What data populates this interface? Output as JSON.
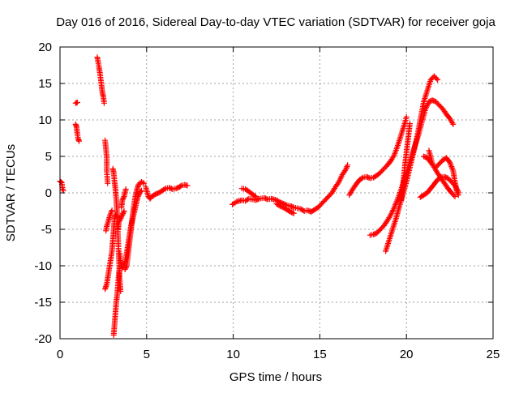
{
  "colors": {
    "series": "#ff0000",
    "grid": "#a0a0a0",
    "axis": "#000000",
    "background": "#ffffff"
  },
  "chart_data": {
    "type": "scatter",
    "marker": "plus",
    "title": "Day 016 of 2016, Sidereal Day-to-day VTEC variation (SDTVAR) for receiver goja",
    "xlabel": "GPS time / hours",
    "ylabel": "SDTVAR / TECUs",
    "xlim": [
      0,
      25
    ],
    "ylim": [
      -20,
      20
    ],
    "xticks": [
      0,
      5,
      10,
      15,
      20,
      25
    ],
    "yticks": [
      -20,
      -15,
      -10,
      -5,
      0,
      5,
      10,
      15,
      20
    ],
    "grid": true,
    "series": [
      {
        "name": "SDTVAR",
        "segments": [
          [
            [
              0.0,
              1.6
            ],
            [
              0.1,
              1.4
            ],
            [
              0.15,
              0.5
            ],
            [
              0.2,
              0.3
            ]
          ],
          [
            [
              0.9,
              12.3
            ],
            [
              1.0,
              12.4
            ]
          ],
          [
            [
              0.9,
              9.4
            ],
            [
              0.95,
              9.1
            ],
            [
              1.0,
              8.1
            ],
            [
              1.05,
              7.4
            ],
            [
              1.1,
              7.1
            ]
          ],
          [
            [
              2.15,
              18.6
            ],
            [
              2.2,
              18.0
            ],
            [
              2.25,
              17.3
            ],
            [
              2.3,
              16.5
            ],
            [
              2.35,
              15.6
            ],
            [
              2.4,
              14.7
            ],
            [
              2.45,
              13.7
            ],
            [
              2.5,
              13.2
            ],
            [
              2.55,
              12.3
            ]
          ],
          [
            [
              2.6,
              7.2
            ],
            [
              2.65,
              6.1
            ],
            [
              2.7,
              4.8
            ],
            [
              2.7,
              3.0
            ],
            [
              2.75,
              1.3
            ]
          ],
          [
            [
              2.6,
              -13.2
            ],
            [
              2.7,
              -12.5
            ],
            [
              2.8,
              -11.0
            ],
            [
              2.9,
              -9.5
            ],
            [
              3.0,
              -8.0
            ],
            [
              3.05,
              -6.5
            ],
            [
              3.1,
              -5.0
            ],
            [
              3.15,
              -3.5
            ],
            [
              3.2,
              -3.0
            ],
            [
              3.3,
              -3.3
            ]
          ],
          [
            [
              2.65,
              -5.2
            ],
            [
              2.7,
              -4.6
            ],
            [
              2.8,
              -3.8
            ],
            [
              2.9,
              -3.0
            ],
            [
              3.0,
              -2.4
            ]
          ],
          [
            [
              3.05,
              3.3
            ],
            [
              3.1,
              2.8
            ],
            [
              3.15,
              1.5
            ],
            [
              3.2,
              0.5
            ],
            [
              3.25,
              -1.0
            ],
            [
              3.3,
              -3.0
            ],
            [
              3.35,
              -6.0
            ],
            [
              3.4,
              -9.0
            ],
            [
              3.45,
              -12.0
            ],
            [
              3.5,
              -13.5
            ]
          ],
          [
            [
              3.1,
              -19.5
            ],
            [
              3.15,
              -18.0
            ],
            [
              3.2,
              -16.5
            ],
            [
              3.25,
              -15.0
            ],
            [
              3.3,
              -14.0
            ],
            [
              3.35,
              -12.5
            ],
            [
              3.4,
              -11.0
            ],
            [
              3.45,
              -10.2
            ]
          ],
          [
            [
              3.35,
              -5.0
            ],
            [
              3.4,
              -4.0
            ],
            [
              3.5,
              -3.5
            ],
            [
              3.6,
              -3.0
            ],
            [
              3.7,
              -2.5
            ]
          ],
          [
            [
              3.45,
              -8.3
            ],
            [
              3.5,
              -9.5
            ],
            [
              3.6,
              -10.3
            ],
            [
              3.7,
              -10.0
            ],
            [
              3.8,
              -9.0
            ],
            [
              3.9,
              -7.5
            ],
            [
              4.0,
              -6.0
            ],
            [
              4.1,
              -4.5
            ],
            [
              4.2,
              -3.5
            ],
            [
              4.3,
              -2.5
            ],
            [
              4.4,
              -1.5
            ],
            [
              4.5,
              -0.5
            ],
            [
              4.6,
              0.0
            ],
            [
              4.7,
              0.3
            ]
          ],
          [
            [
              3.55,
              -2.0
            ],
            [
              3.6,
              -1.0
            ],
            [
              3.7,
              -0.5
            ],
            [
              3.8,
              0.5
            ]
          ],
          [
            [
              3.75,
              -10.5
            ],
            [
              3.85,
              -10.0
            ],
            [
              3.95,
              -8.0
            ],
            [
              4.05,
              -6.0
            ],
            [
              4.15,
              -4.0
            ],
            [
              4.25,
              -2.0
            ],
            [
              4.35,
              -0.5
            ],
            [
              4.45,
              0.5
            ],
            [
              4.55,
              1.2
            ],
            [
              4.7,
              1.5
            ],
            [
              4.85,
              1.3
            ]
          ],
          [
            [
              4.95,
              0.8
            ],
            [
              5.1,
              -0.5
            ],
            [
              5.2,
              -0.8
            ],
            [
              5.3,
              -0.5
            ],
            [
              5.5,
              -0.2
            ],
            [
              5.7,
              0.0
            ],
            [
              5.9,
              0.3
            ],
            [
              6.1,
              0.6
            ],
            [
              6.3,
              0.7
            ],
            [
              6.5,
              0.5
            ],
            [
              6.7,
              0.6
            ],
            [
              6.9,
              0.8
            ],
            [
              7.0,
              1.0
            ],
            [
              7.2,
              1.1
            ],
            [
              7.35,
              1.0
            ]
          ],
          [
            [
              9.95,
              -1.6
            ],
            [
              10.2,
              -1.2
            ],
            [
              10.5,
              -1.0
            ],
            [
              10.7,
              -1.1
            ],
            [
              10.9,
              -0.8
            ],
            [
              11.1,
              -0.9
            ],
            [
              11.3,
              -1.0
            ],
            [
              11.5,
              -0.8
            ],
            [
              11.8,
              -0.7
            ],
            [
              12.0,
              -0.9
            ],
            [
              12.2,
              -0.8
            ],
            [
              12.5,
              -1.0
            ],
            [
              12.7,
              -1.3
            ],
            [
              12.9,
              -1.5
            ],
            [
              13.1,
              -1.7
            ],
            [
              13.3,
              -1.8
            ],
            [
              13.5,
              -2.0
            ],
            [
              13.7,
              -2.1
            ],
            [
              13.9,
              -2.2
            ],
            [
              14.1,
              -2.5
            ],
            [
              14.3,
              -2.4
            ],
            [
              14.5,
              -2.6
            ],
            [
              14.7,
              -2.3
            ],
            [
              14.9,
              -2.0
            ],
            [
              15.1,
              -1.5
            ],
            [
              15.3,
              -1.0
            ],
            [
              15.5,
              -0.5
            ],
            [
              15.7,
              0.0
            ],
            [
              15.9,
              0.8
            ],
            [
              16.1,
              1.5
            ],
            [
              16.3,
              2.5
            ],
            [
              16.5,
              3.2
            ],
            [
              16.6,
              3.8
            ]
          ],
          [
            [
              10.5,
              0.6
            ],
            [
              10.7,
              0.5
            ],
            [
              10.9,
              0.2
            ],
            [
              11.1,
              -0.2
            ],
            [
              11.3,
              -0.5
            ]
          ],
          [
            [
              12.5,
              -1.5
            ],
            [
              12.7,
              -1.8
            ],
            [
              12.9,
              -2.0
            ],
            [
              13.1,
              -2.3
            ],
            [
              13.3,
              -2.6
            ],
            [
              13.5,
              -2.8
            ]
          ],
          [
            [
              16.7,
              -0.3
            ],
            [
              16.9,
              0.5
            ],
            [
              17.1,
              1.2
            ],
            [
              17.3,
              1.8
            ],
            [
              17.5,
              2.1
            ],
            [
              17.7,
              2.2
            ],
            [
              17.9,
              2.0
            ],
            [
              18.1,
              2.1
            ],
            [
              18.3,
              2.4
            ],
            [
              18.5,
              2.8
            ],
            [
              18.7,
              3.3
            ],
            [
              18.9,
              3.8
            ],
            [
              19.1,
              4.4
            ],
            [
              19.3,
              5.2
            ],
            [
              19.5,
              6.5
            ],
            [
              19.7,
              8.0
            ],
            [
              19.9,
              9.5
            ],
            [
              20.0,
              10.4
            ]
          ],
          [
            [
              17.9,
              -5.8
            ],
            [
              18.1,
              -5.7
            ],
            [
              18.3,
              -5.5
            ],
            [
              18.5,
              -5.0
            ],
            [
              18.7,
              -4.5
            ],
            [
              18.9,
              -3.8
            ],
            [
              19.1,
              -3.0
            ],
            [
              19.3,
              -2.0
            ],
            [
              19.5,
              -0.8
            ],
            [
              19.7,
              0.5
            ],
            [
              19.9,
              2.0
            ],
            [
              20.1,
              3.5
            ],
            [
              20.3,
              5.0
            ],
            [
              20.5,
              6.5
            ],
            [
              20.7,
              8.0
            ],
            [
              20.9,
              9.8
            ],
            [
              21.1,
              11.5
            ],
            [
              21.3,
              12.5
            ],
            [
              21.5,
              12.7
            ],
            [
              21.7,
              12.5
            ],
            [
              21.9,
              12.0
            ],
            [
              22.1,
              11.5
            ],
            [
              22.3,
              10.8
            ],
            [
              22.5,
              10.2
            ],
            [
              22.7,
              9.4
            ]
          ],
          [
            [
              18.8,
              -8.0
            ],
            [
              19.0,
              -6.5
            ],
            [
              19.2,
              -5.0
            ],
            [
              19.4,
              -3.5
            ],
            [
              19.6,
              -1.8
            ],
            [
              19.8,
              -0.2
            ],
            [
              20.0,
              1.5
            ],
            [
              20.2,
              3.5
            ],
            [
              20.4,
              5.5
            ],
            [
              20.6,
              7.5
            ],
            [
              20.8,
              10.0
            ],
            [
              21.0,
              12.5
            ],
            [
              21.2,
              14.0
            ],
            [
              21.4,
              15.5
            ],
            [
              21.6,
              16.0
            ],
            [
              21.8,
              15.5
            ]
          ],
          [
            [
              19.7,
              -1.0
            ],
            [
              19.8,
              1.0
            ],
            [
              19.9,
              3.5
            ],
            [
              20.0,
              5.5
            ],
            [
              20.1,
              7.5
            ],
            [
              20.2,
              9.5
            ]
          ],
          [
            [
              21.0,
              5.0
            ],
            [
              21.2,
              4.8
            ],
            [
              21.4,
              4.2
            ],
            [
              21.6,
              3.5
            ],
            [
              21.8,
              2.7
            ],
            [
              22.0,
              2.0
            ],
            [
              22.2,
              1.3
            ],
            [
              22.4,
              0.6
            ],
            [
              22.6,
              0.0
            ],
            [
              22.8,
              -0.5
            ]
          ],
          [
            [
              20.8,
              -0.6
            ],
            [
              21.0,
              -0.3
            ],
            [
              21.2,
              0.0
            ],
            [
              21.4,
              0.6
            ],
            [
              21.6,
              1.2
            ],
            [
              21.8,
              1.8
            ],
            [
              22.0,
              2.2
            ],
            [
              22.2,
              2.2
            ],
            [
              22.4,
              2.0
            ],
            [
              22.6,
              1.5
            ],
            [
              22.8,
              1.0
            ],
            [
              23.0,
              0.1
            ]
          ],
          [
            [
              21.3,
              5.8
            ],
            [
              21.5,
              4.0
            ]
          ],
          [
            [
              21.7,
              3.5
            ],
            [
              21.9,
              4.0
            ],
            [
              22.1,
              4.5
            ],
            [
              22.3,
              4.8
            ],
            [
              22.5,
              4.2
            ],
            [
              22.7,
              3.0
            ],
            [
              22.8,
              1.5
            ],
            [
              22.9,
              0.3
            ],
            [
              23.0,
              -0.3
            ]
          ]
        ]
      }
    ]
  }
}
